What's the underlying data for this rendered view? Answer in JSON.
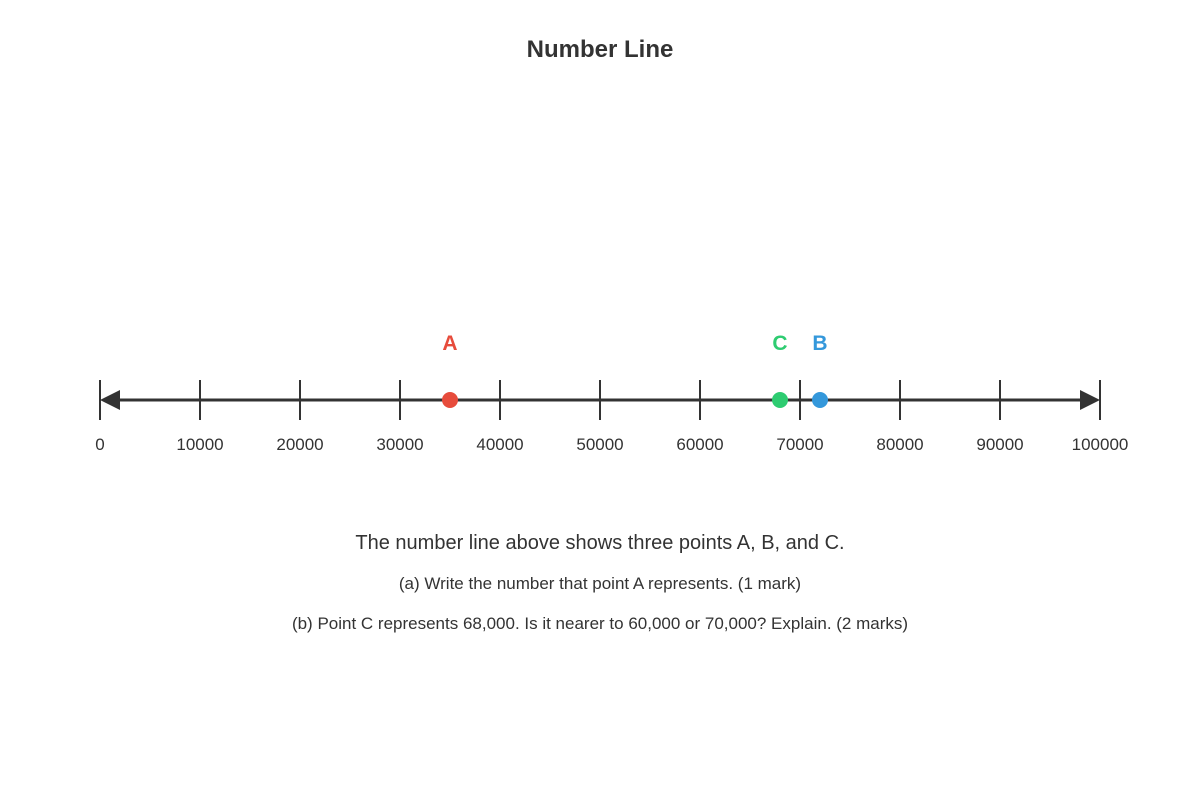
{
  "title": "Number Line",
  "number_line": {
    "min": 0,
    "max": 100000,
    "tick_step": 10000,
    "tick_labels": [
      "0",
      "10000",
      "20000",
      "30000",
      "40000",
      "50000",
      "60000",
      "70000",
      "80000",
      "90000",
      "100000"
    ],
    "line_color": "#333333",
    "arrows": "both-ends"
  },
  "points": [
    {
      "label": "A",
      "value": 35000,
      "color": "#e74c3c"
    },
    {
      "label": "C",
      "value": 68000,
      "color": "#2ecc71"
    },
    {
      "label": "B",
      "value": 72000,
      "color": "#3498db"
    }
  ],
  "text": {
    "intro": "The number line above shows three points A, B, and C.",
    "question_a": "(a) Write the number that point A represents. (1 mark)",
    "question_b": "(b) Point C represents 68,000. Is it nearer to 60,000 or 70,000? Explain. (2 marks)"
  }
}
